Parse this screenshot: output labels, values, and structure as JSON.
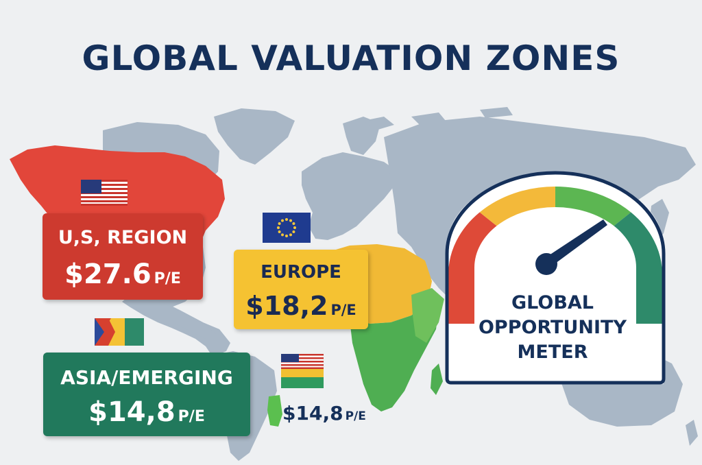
{
  "title": "GLOBAL VALUATION ZONES",
  "regions": [
    {
      "name": "U,S, REGION",
      "value": "$27.6",
      "unit": "P/E",
      "color": "#cd3a2f"
    },
    {
      "name": "EUROPE",
      "value": "$18,2",
      "unit": "P/E",
      "color": "#f5c232"
    },
    {
      "name": "ASIA/EMERGING",
      "value": "$14,8",
      "unit": "P/E",
      "color": "#21795c"
    }
  ],
  "secondary_label": {
    "value": "$14,8",
    "unit": "P/E"
  },
  "meter": {
    "lines": [
      "GLOBAL",
      "OPPORTUNITY",
      "METER"
    ],
    "segment_colors": [
      "#de4a38",
      "#f3b93a",
      "#5cb652",
      "#2e8a6a"
    ]
  },
  "colors": {
    "background": "#eef0f2",
    "map": "#a9b7c6",
    "title": "#15305a"
  },
  "icons": [
    "us-flag-icon",
    "eu-flag-icon",
    "asia-flag-icon",
    "flag-icon",
    "gauge-needle-icon"
  ]
}
